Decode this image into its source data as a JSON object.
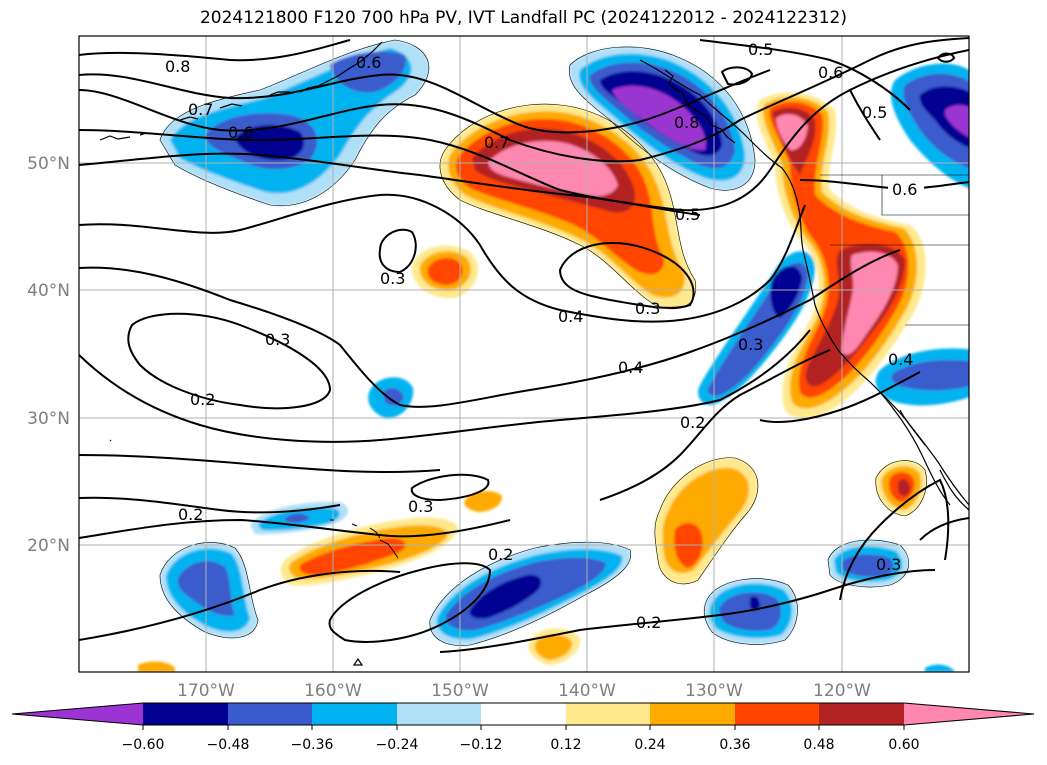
{
  "title": "2024121800 F120 700 hPa PV, IVT Landfall PC (2024122012 - 2024122312)",
  "lat_labels": [
    "50°N",
    "40°N",
    "30°N",
    "20°N"
  ],
  "lon_labels": [
    "170°W",
    "160°W",
    "150°W",
    "140°W",
    "130°W",
    "120°W"
  ],
  "colorbar": {
    "tick_labels": [
      "−0.60",
      "−0.48",
      "−0.36",
      "−0.24",
      "−0.12",
      "0.12",
      "0.24",
      "0.36",
      "0.48",
      "0.60"
    ],
    "colors": [
      "#9b34d2",
      "#000091",
      "#3a5bcc",
      "#00b3f0",
      "#b0e0f8",
      "#ffffff",
      "#ffe98c",
      "#ffaa00",
      "#ff4400",
      "#b22222",
      "#ff88b0"
    ]
  },
  "contour_labels": [
    "0.8",
    "0.7",
    "0.6",
    "0.6",
    "0.5",
    "0.5",
    "0.6",
    "0.7",
    "0.5",
    "0.3",
    "0.3",
    "0.4",
    "0.3",
    "0.2",
    "0.4",
    "0.3",
    "0.2",
    "0.3",
    "0.2",
    "0.2",
    "0.3",
    "0.2",
    "0.4",
    "0.8"
  ]
}
